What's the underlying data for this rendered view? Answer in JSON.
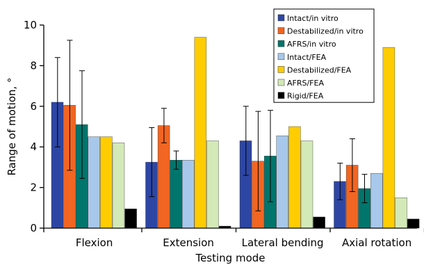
{
  "chart_data": {
    "type": "bar",
    "title": "",
    "xlabel": "Testing mode",
    "ylabel": "Range of motion, °",
    "ylim": [
      0,
      10
    ],
    "yticks": [
      "0",
      "2",
      "4",
      "6",
      "8",
      "10"
    ],
    "grid": false,
    "legend_position": "top-right",
    "categories": [
      "Flexion",
      "Extension",
      "Lateral bending",
      "Axial rotation"
    ],
    "series": [
      {
        "name": "Intact/in vitro",
        "color": "#2e46a3",
        "values": [
          6.2,
          3.25,
          4.3,
          2.3
        ],
        "error": [
          2.2,
          1.7,
          1.7,
          0.9
        ]
      },
      {
        "name": "Destabilized/in vitro",
        "color": "#f26522",
        "values": [
          6.05,
          5.05,
          3.3,
          3.1
        ],
        "error": [
          3.2,
          0.85,
          2.45,
          1.3
        ]
      },
      {
        "name": "AFRS/in vitro",
        "color": "#00756b",
        "values": [
          5.1,
          3.35,
          3.55,
          1.95
        ],
        "error": [
          2.65,
          0.45,
          2.25,
          0.7
        ]
      },
      {
        "name": "Intact/FEA",
        "color": "#a7c8ea",
        "values": [
          4.5,
          3.35,
          4.55,
          2.7
        ],
        "error": null
      },
      {
        "name": "Destabilized/FEA",
        "color": "#ffcc00",
        "values": [
          4.5,
          9.4,
          5.0,
          8.9
        ],
        "error": null
      },
      {
        "name": "AFRS/FEA",
        "color": "#d3e9b8",
        "values": [
          4.2,
          4.3,
          4.3,
          1.5
        ],
        "error": null
      },
      {
        "name": "Rigid/FEA",
        "color": "#000000",
        "values": [
          0.95,
          0.1,
          0.55,
          0.45
        ],
        "error": null
      }
    ]
  }
}
